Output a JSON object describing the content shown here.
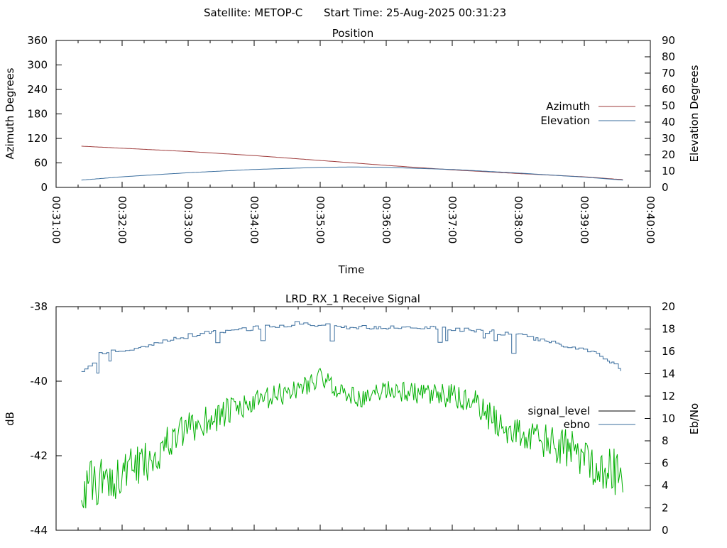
{
  "header": {
    "satellite_label": "Satellite: METOP-C",
    "start_time_label": "Start Time: 25-Aug-2025 00:31:23"
  },
  "chart_data": [
    {
      "type": "line",
      "title": "Position",
      "xlabel": "Time",
      "ylabel": "Azimuth Degrees",
      "y2label": "Elevation Degrees",
      "xlim": [
        "00:31:00",
        "00:40:00"
      ],
      "ylim": [
        0,
        360
      ],
      "y2lim": [
        0,
        90
      ],
      "xticks": [
        "00:31:00",
        "00:32:00",
        "00:33:00",
        "00:34:00",
        "00:35:00",
        "00:36:00",
        "00:37:00",
        "00:38:00",
        "00:39:00",
        "00:40:00"
      ],
      "yticks": [
        0,
        60,
        120,
        180,
        240,
        300,
        360
      ],
      "y2ticks": [
        0,
        10,
        20,
        30,
        40,
        50,
        60,
        70,
        80,
        90
      ],
      "legend_position": "right",
      "series": [
        {
          "name": "Azimuth",
          "axis": "y",
          "color": "#9e3a3a",
          "x": [
            "00:31:23",
            "00:32:00",
            "00:33:00",
            "00:34:00",
            "00:35:00",
            "00:36:00",
            "00:37:00",
            "00:38:00",
            "00:39:00",
            "00:39:35"
          ],
          "values": [
            101,
            96,
            88,
            78,
            66,
            54,
            43,
            34,
            26,
            19
          ]
        },
        {
          "name": "Elevation",
          "axis": "y2",
          "color": "#3a6e9e",
          "x": [
            "00:31:23",
            "00:32:00",
            "00:33:00",
            "00:34:00",
            "00:35:00",
            "00:35:30",
            "00:36:00",
            "00:37:00",
            "00:38:00",
            "00:39:00",
            "00:39:35"
          ],
          "values": [
            4.5,
            6.5,
            9,
            11,
            12.3,
            12.5,
            12.3,
            11,
            8.8,
            6.3,
            4.5
          ]
        }
      ]
    },
    {
      "type": "line",
      "title": "LRD_RX_1 Receive Signal",
      "xlabel": "",
      "ylabel": "dB",
      "y2label": "Eb/No",
      "xlim": [
        "00:31:00",
        "00:40:00"
      ],
      "ylim": [
        -44,
        -38
      ],
      "y2lim": [
        0,
        20
      ],
      "yticks": [
        -44,
        -42,
        -40,
        -38
      ],
      "y2ticks": [
        0,
        2,
        4,
        6,
        8,
        10,
        12,
        14,
        16,
        18,
        20
      ],
      "legend_position": "right",
      "series": [
        {
          "name": "signal_level",
          "axis": "y",
          "color": "#00b000",
          "x": [
            "00:31:23",
            "00:31:40",
            "00:32:00",
            "00:32:20",
            "00:32:40",
            "00:33:00",
            "00:33:20",
            "00:33:40",
            "00:34:00",
            "00:34:20",
            "00:34:40",
            "00:35:00",
            "00:35:20",
            "00:35:40",
            "00:36:00",
            "00:36:20",
            "00:36:40",
            "00:37:00",
            "00:37:20",
            "00:37:40",
            "00:38:00",
            "00:38:20",
            "00:38:40",
            "00:39:00",
            "00:39:20",
            "00:39:35"
          ],
          "values": [
            -42.9,
            -42.7,
            -42.5,
            -42.2,
            -41.7,
            -41.3,
            -41.0,
            -40.8,
            -40.6,
            -40.4,
            -40.2,
            -39.9,
            -40.3,
            -40.5,
            -40.2,
            -40.3,
            -40.4,
            -40.4,
            -40.6,
            -41.1,
            -41.4,
            -41.6,
            -41.8,
            -42.0,
            -42.4,
            -42.5
          ]
        },
        {
          "name": "ebno",
          "axis": "y2",
          "color": "#3a6e9e",
          "x": [
            "00:31:23",
            "00:31:40",
            "00:32:00",
            "00:32:20",
            "00:32:40",
            "00:33:00",
            "00:33:20",
            "00:33:40",
            "00:34:00",
            "00:34:20",
            "00:34:40",
            "00:35:00",
            "00:35:20",
            "00:35:40",
            "00:36:00",
            "00:36:20",
            "00:36:40",
            "00:37:00",
            "00:37:20",
            "00:37:40",
            "00:38:00",
            "00:38:20",
            "00:38:40",
            "00:39:00",
            "00:39:20",
            "00:39:35"
          ],
          "values": [
            14.2,
            15.8,
            16.1,
            16.4,
            16.9,
            17.4,
            17.7,
            17.9,
            18.1,
            18.3,
            18.5,
            18.4,
            18.2,
            18.2,
            18.1,
            18.0,
            18.1,
            18.0,
            17.9,
            17.7,
            17.4,
            17.0,
            16.6,
            16.1,
            15.4,
            14.0
          ]
        }
      ]
    }
  ]
}
